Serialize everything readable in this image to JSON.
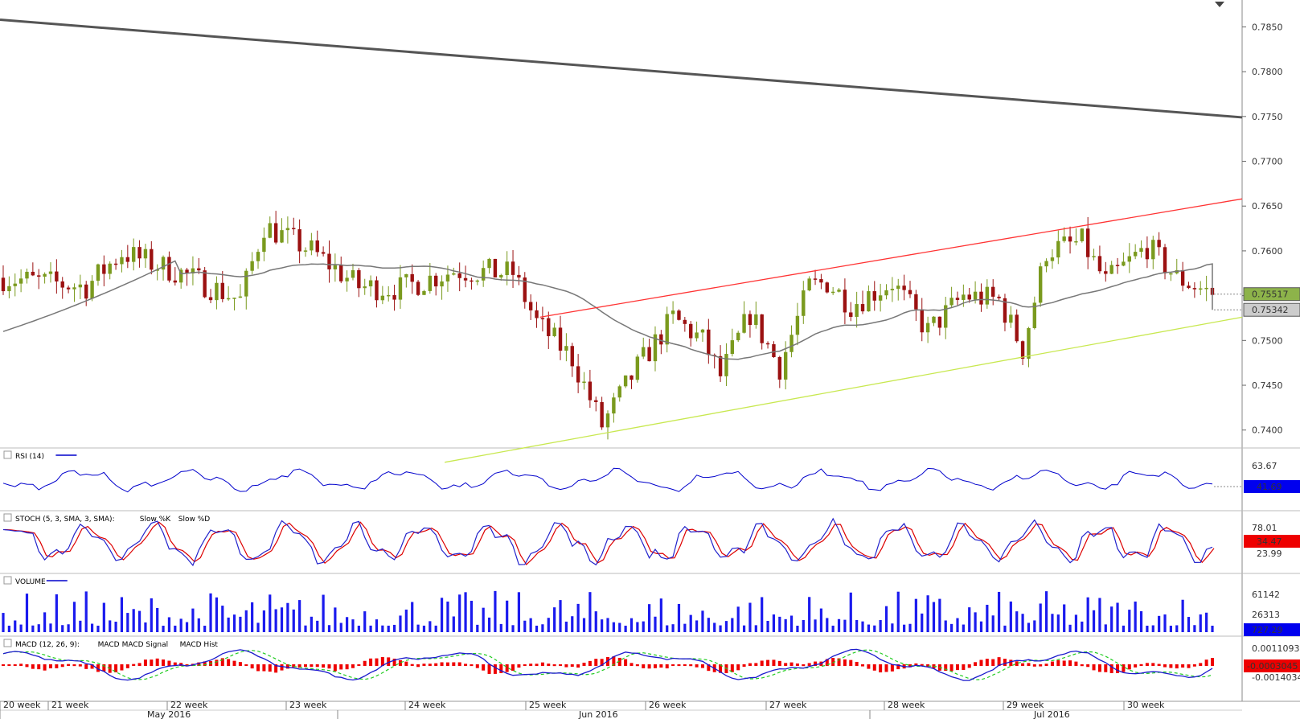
{
  "chart_data": [
    {
      "type": "candlestick",
      "yticks": [
        "0.7850",
        "0.7800",
        "0.7750",
        "0.7700",
        "0.7650",
        "0.7600",
        "0.7550",
        "0.7500",
        "0.7450",
        "0.7400"
      ],
      "ylim": [
        0.738,
        0.788
      ],
      "last_price": "0.75517",
      "ma_price": "0.75342",
      "trendlines": [
        {
          "color": "#555555",
          "from": [
            0,
            0.7858
          ],
          "to": [
            1,
            0.7749
          ]
        },
        {
          "color": "#ff3333",
          "from": [
            0.4347,
            0.7526
          ],
          "to": [
            1,
            0.7658
          ]
        },
        {
          "color": "#c8e850",
          "from": [
            0.358,
            0.7364
          ],
          "to": [
            1,
            0.7526
          ]
        }
      ]
    },
    {
      "type": "line",
      "name": "RSI (14)",
      "ytick": "63.67",
      "last": "41.69"
    },
    {
      "type": "line",
      "name": "STOCH (5, 3, SMA, 3, SMA):",
      "legend": [
        "Slow %K",
        "Slow %D"
      ],
      "ytick": "78.01",
      "last_d": "34.47",
      "last_k": "23.99"
    },
    {
      "type": "bar",
      "name": "VOLUME",
      "yticks": [
        "61142",
        "26313"
      ],
      "last": "727.29"
    },
    {
      "type": "line",
      "name": "MACD (12, 26, 9):",
      "legend": [
        "MACD",
        "MACD Signal",
        "MACD Hist"
      ],
      "yticks": [
        "0.0011093",
        "-0.0014034"
      ],
      "last": "-0.0003045"
    }
  ],
  "xaxis": {
    "weeks": [
      "20 week",
      "21 week",
      "22 week",
      "23 week",
      "24 week",
      "25 week",
      "26 week",
      "27 week",
      "28 week",
      "29 week",
      "30 week"
    ],
    "months": [
      "May 2016",
      "Jun 2016",
      "Jul 2016"
    ]
  }
}
